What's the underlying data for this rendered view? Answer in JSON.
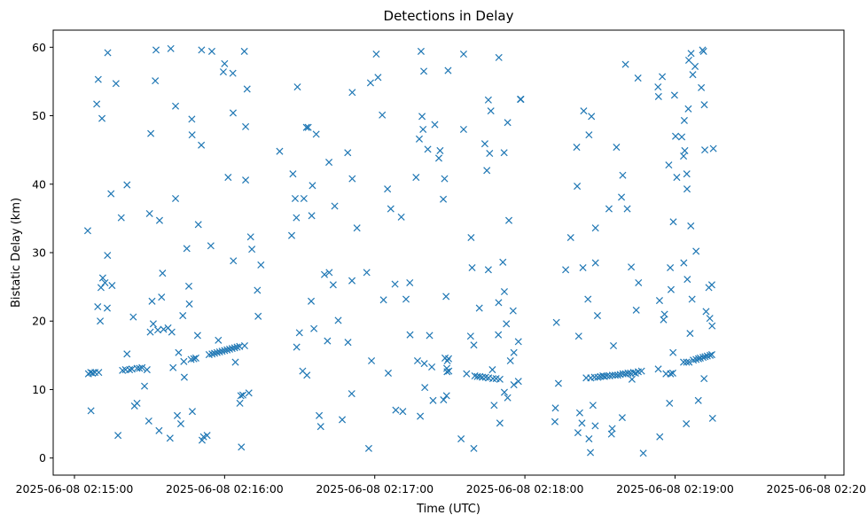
{
  "chart_data": {
    "type": "scatter",
    "title": "Detections in Delay",
    "xlabel": "Time (UTC)",
    "ylabel": "Bistatic Delay (km)",
    "x_unit": "seconds after 2025-06-08 02:15:00 UTC",
    "x_ticks": [
      {
        "value": 0,
        "label": "2025-06-08 02:15:00"
      },
      {
        "value": 60,
        "label": "2025-06-08 02:16:00"
      },
      {
        "value": 120,
        "label": "2025-06-08 02:17:00"
      },
      {
        "value": 180,
        "label": "2025-06-08 02:18:00"
      },
      {
        "value": 240,
        "label": "2025-06-08 02:19:00"
      },
      {
        "value": 300,
        "label": "2025-06-08 02:20:00"
      }
    ],
    "y_ticks": [
      0,
      10,
      20,
      30,
      40,
      50,
      60
    ],
    "xlim": [
      -8.5,
      307.5
    ],
    "ylim": [
      -2.5,
      62.5
    ],
    "grid": false,
    "marker": "x",
    "color": "#1f77b4",
    "points": [
      [
        5.3,
        33.2
      ],
      [
        5.6,
        12.3
      ],
      [
        6.5,
        12.5
      ],
      [
        6.6,
        6.9
      ],
      [
        7.2,
        12.4
      ],
      [
        8.2,
        12.5
      ],
      [
        8.9,
        51.7
      ],
      [
        9.3,
        22.1
      ],
      [
        9.5,
        55.3
      ],
      [
        9.7,
        12.5
      ],
      [
        10.3,
        20.0
      ],
      [
        10.6,
        24.9
      ],
      [
        11.0,
        49.6
      ],
      [
        11.3,
        26.3
      ],
      [
        12.2,
        25.6
      ],
      [
        13.3,
        59.2
      ],
      [
        13.2,
        29.6
      ],
      [
        13.1,
        21.9
      ],
      [
        14.6,
        38.6
      ],
      [
        15.0,
        25.2
      ],
      [
        16.6,
        54.7
      ],
      [
        17.4,
        3.3
      ],
      [
        18.7,
        35.1
      ],
      [
        19.2,
        12.8
      ],
      [
        20.4,
        12.9
      ],
      [
        21.0,
        15.2
      ],
      [
        21.0,
        39.9
      ],
      [
        22.0,
        12.9
      ],
      [
        23.0,
        13.0
      ],
      [
        23.5,
        20.6
      ],
      [
        24.0,
        7.6
      ],
      [
        25.0,
        13.1
      ],
      [
        25.0,
        8.0
      ],
      [
        26.0,
        13.1
      ],
      [
        27.0,
        13.2
      ],
      [
        28.0,
        10.5
      ],
      [
        29.0,
        12.9
      ],
      [
        29.7,
        5.4
      ],
      [
        30.0,
        35.7
      ],
      [
        30.3,
        18.4
      ],
      [
        30.5,
        47.4
      ],
      [
        31.0,
        22.9
      ],
      [
        31.5,
        19.6
      ],
      [
        32.6,
        59.6
      ],
      [
        32.3,
        55.1
      ],
      [
        33.3,
        18.7
      ],
      [
        33.8,
        4.0
      ],
      [
        34.0,
        34.7
      ],
      [
        34.8,
        23.5
      ],
      [
        35.2,
        27.0
      ],
      [
        35.6,
        18.8
      ],
      [
        37.4,
        19.0
      ],
      [
        38.2,
        2.9
      ],
      [
        38.5,
        59.8
      ],
      [
        38.9,
        18.4
      ],
      [
        39.4,
        13.2
      ],
      [
        40.4,
        51.4
      ],
      [
        40.4,
        37.9
      ],
      [
        41.1,
        6.2
      ],
      [
        41.6,
        15.4
      ],
      [
        42.5,
        5.0
      ],
      [
        43.3,
        20.8
      ],
      [
        43.7,
        14.1
      ],
      [
        43.9,
        11.8
      ],
      [
        44.9,
        30.6
      ],
      [
        45.7,
        25.1
      ],
      [
        45.9,
        22.5
      ],
      [
        46.6,
        14.4
      ],
      [
        46.9,
        49.5
      ],
      [
        47.0,
        47.2
      ],
      [
        47.1,
        6.8
      ],
      [
        47.7,
        14.5
      ],
      [
        48.5,
        14.6
      ],
      [
        49.2,
        17.9
      ],
      [
        49.5,
        34.1
      ],
      [
        50.7,
        45.7
      ],
      [
        50.8,
        59.6
      ],
      [
        51.0,
        2.6
      ],
      [
        51.6,
        3.1
      ],
      [
        53.0,
        3.3
      ],
      [
        53.8,
        15.1
      ],
      [
        54.5,
        31.0
      ],
      [
        54.9,
        59.4
      ],
      [
        55.0,
        15.2
      ],
      [
        56.0,
        15.3
      ],
      [
        57.0,
        15.4
      ],
      [
        57.5,
        17.2
      ],
      [
        58.0,
        15.5
      ],
      [
        59.0,
        15.6
      ],
      [
        59.5,
        56.4
      ],
      [
        60.0,
        15.7
      ],
      [
        60.0,
        57.6
      ],
      [
        61.0,
        15.8
      ],
      [
        61.4,
        41.0
      ],
      [
        62.0,
        15.9
      ],
      [
        63.0,
        16.0
      ],
      [
        63.3,
        56.2
      ],
      [
        63.4,
        50.4
      ],
      [
        63.5,
        28.8
      ],
      [
        64.0,
        16.1
      ],
      [
        64.3,
        14.0
      ],
      [
        65.0,
        16.2
      ],
      [
        66.0,
        16.3
      ],
      [
        66.1,
        8.0
      ],
      [
        66.5,
        9.1
      ],
      [
        66.7,
        1.6
      ],
      [
        67.3,
        9.2
      ],
      [
        68.0,
        16.4
      ],
      [
        67.9,
        59.4
      ],
      [
        68.4,
        48.4
      ],
      [
        68.4,
        40.6
      ],
      [
        69.0,
        53.9
      ],
      [
        69.7,
        9.5
      ],
      [
        70.4,
        32.3
      ],
      [
        70.9,
        30.5
      ],
      [
        73.1,
        24.5
      ],
      [
        73.4,
        20.7
      ],
      [
        74.5,
        28.2
      ],
      [
        82.0,
        44.8
      ],
      [
        86.8,
        32.5
      ],
      [
        87.3,
        41.5
      ],
      [
        88.2,
        37.9
      ],
      [
        88.7,
        35.1
      ],
      [
        88.8,
        16.2
      ],
      [
        89.1,
        54.2
      ],
      [
        89.9,
        18.3
      ],
      [
        91.2,
        12.7
      ],
      [
        91.7,
        37.9
      ],
      [
        92.9,
        12.1
      ],
      [
        92.7,
        48.3
      ],
      [
        93.4,
        48.3
      ],
      [
        94.6,
        22.9
      ],
      [
        94.8,
        35.4
      ],
      [
        95.1,
        39.8
      ],
      [
        95.7,
        18.9
      ],
      [
        96.6,
        47.3
      ],
      [
        97.8,
        6.2
      ],
      [
        98.4,
        4.6
      ],
      [
        99.9,
        26.8
      ],
      [
        101.1,
        17.1
      ],
      [
        101.7,
        43.2
      ],
      [
        101.8,
        27.1
      ],
      [
        103.4,
        25.3
      ],
      [
        104.0,
        36.8
      ],
      [
        105.4,
        20.1
      ],
      [
        107.0,
        5.6
      ],
      [
        109.2,
        44.6
      ],
      [
        109.3,
        16.9
      ],
      [
        111.0,
        40.8
      ],
      [
        110.9,
        25.9
      ],
      [
        110.8,
        9.4
      ],
      [
        111.0,
        53.4
      ],
      [
        112.9,
        33.6
      ],
      [
        116.8,
        27.1
      ],
      [
        117.6,
        1.4
      ],
      [
        118.3,
        54.8
      ],
      [
        118.7,
        14.2
      ],
      [
        120.6,
        59.0
      ],
      [
        121.3,
        55.6
      ],
      [
        123.0,
        50.1
      ],
      [
        123.5,
        23.1
      ],
      [
        125.1,
        39.3
      ],
      [
        125.4,
        12.4
      ],
      [
        126.4,
        36.4
      ],
      [
        128.1,
        25.4
      ],
      [
        128.4,
        7.0
      ],
      [
        130.6,
        35.2
      ],
      [
        131.2,
        6.8
      ],
      [
        132.5,
        23.2
      ],
      [
        134.0,
        25.6
      ],
      [
        134.1,
        18.0
      ],
      [
        136.5,
        41.0
      ],
      [
        137.1,
        14.2
      ],
      [
        137.8,
        46.6
      ],
      [
        138.2,
        6.1
      ],
      [
        138.5,
        59.4
      ],
      [
        138.9,
        49.9
      ],
      [
        139.3,
        48.0
      ],
      [
        139.6,
        56.5
      ],
      [
        139.8,
        13.8
      ],
      [
        140.0,
        10.3
      ],
      [
        141.2,
        45.1
      ],
      [
        141.9,
        17.9
      ],
      [
        142.8,
        13.3
      ],
      [
        143.3,
        8.4
      ],
      [
        144.0,
        48.7
      ],
      [
        145.6,
        43.8
      ],
      [
        146.1,
        44.9
      ],
      [
        147.4,
        37.8
      ],
      [
        147.5,
        8.5
      ],
      [
        147.9,
        40.8
      ],
      [
        148.1,
        14.6
      ],
      [
        148.5,
        23.6
      ],
      [
        148.7,
        9.1
      ],
      [
        148.8,
        13.1
      ],
      [
        148.9,
        12.6
      ],
      [
        149.0,
        14.2
      ],
      [
        149.3,
        56.6
      ],
      [
        149.5,
        14.5
      ],
      [
        149.6,
        12.7
      ],
      [
        154.5,
        2.8
      ],
      [
        155.5,
        59.0
      ],
      [
        155.5,
        48.0
      ],
      [
        156.7,
        12.3
      ],
      [
        158.3,
        17.8
      ],
      [
        158.5,
        32.2
      ],
      [
        158.9,
        27.8
      ],
      [
        159.6,
        16.5
      ],
      [
        159.6,
        1.4
      ],
      [
        160.0,
        12.0
      ],
      [
        161.0,
        11.9
      ],
      [
        161.8,
        21.9
      ],
      [
        162.0,
        11.9
      ],
      [
        163.0,
        11.8
      ],
      [
        164.0,
        45.9
      ],
      [
        164.3,
        11.8
      ],
      [
        164.8,
        42.0
      ],
      [
        165.4,
        27.5
      ],
      [
        165.5,
        11.7
      ],
      [
        165.4,
        52.3
      ],
      [
        165.9,
        44.5
      ],
      [
        166.4,
        50.7
      ],
      [
        167.0,
        12.9
      ],
      [
        167.2,
        11.6
      ],
      [
        167.7,
        7.7
      ],
      [
        168.5,
        11.6
      ],
      [
        169.6,
        58.5
      ],
      [
        169.5,
        22.7
      ],
      [
        169.4,
        18.0
      ],
      [
        170.0,
        11.5
      ],
      [
        170.0,
        5.1
      ],
      [
        171.2,
        28.6
      ],
      [
        171.8,
        24.3
      ],
      [
        171.7,
        44.6
      ],
      [
        171.8,
        9.6
      ],
      [
        172.6,
        19.6
      ],
      [
        173.1,
        8.8
      ],
      [
        173.1,
        49.0
      ],
      [
        173.6,
        34.7
      ],
      [
        174.2,
        14.2
      ],
      [
        175.3,
        21.5
      ],
      [
        175.6,
        10.7
      ],
      [
        175.6,
        15.4
      ],
      [
        177.4,
        11.2
      ],
      [
        177.4,
        17.0
      ],
      [
        178.2,
        52.4
      ],
      [
        178.4,
        52.4
      ],
      [
        192.0,
        5.3
      ],
      [
        192.2,
        7.3
      ],
      [
        192.6,
        19.8
      ],
      [
        193.4,
        10.9
      ],
      [
        196.3,
        27.5
      ],
      [
        198.3,
        32.2
      ],
      [
        200.7,
        45.4
      ],
      [
        200.9,
        39.7
      ],
      [
        201.2,
        3.7
      ],
      [
        201.5,
        17.8
      ],
      [
        201.9,
        6.6
      ],
      [
        202.8,
        5.1
      ],
      [
        203.2,
        27.8
      ],
      [
        203.5,
        50.7
      ],
      [
        204.5,
        11.7
      ],
      [
        205.2,
        23.2
      ],
      [
        205.6,
        47.2
      ],
      [
        205.6,
        2.8
      ],
      [
        206.2,
        0.8
      ],
      [
        206.3,
        11.7
      ],
      [
        206.6,
        49.9
      ],
      [
        207.2,
        7.7
      ],
      [
        207.8,
        11.8
      ],
      [
        208.1,
        4.7
      ],
      [
        209.1,
        11.8
      ],
      [
        208.2,
        33.6
      ],
      [
        208.2,
        28.5
      ],
      [
        209.0,
        20.8
      ],
      [
        210.2,
        11.9
      ],
      [
        211.2,
        12.0
      ],
      [
        211.8,
        11.9
      ],
      [
        212.8,
        12.0
      ],
      [
        213.6,
        36.4
      ],
      [
        213.9,
        12.0
      ],
      [
        214.6,
        3.5
      ],
      [
        214.9,
        4.3
      ],
      [
        215.0,
        12.1
      ],
      [
        215.4,
        16.4
      ],
      [
        216.1,
        12.1
      ],
      [
        216.6,
        45.4
      ],
      [
        217.1,
        12.1
      ],
      [
        218.1,
        12.2
      ],
      [
        218.6,
        38.1
      ],
      [
        218.9,
        5.9
      ],
      [
        219.2,
        12.3
      ],
      [
        219.1,
        41.3
      ],
      [
        220.2,
        12.3
      ],
      [
        220.2,
        57.5
      ],
      [
        220.9,
        36.4
      ],
      [
        221.2,
        12.4
      ],
      [
        222.2,
        12.4
      ],
      [
        222.5,
        27.9
      ],
      [
        222.8,
        11.5
      ],
      [
        223.4,
        12.5
      ],
      [
        224.2,
        12.4
      ],
      [
        224.5,
        21.6
      ],
      [
        225.2,
        55.5
      ],
      [
        225.3,
        12.6
      ],
      [
        225.4,
        25.6
      ],
      [
        226.6,
        12.7
      ],
      [
        227.3,
        0.7
      ],
      [
        233.2,
        54.2
      ],
      [
        233.3,
        13.0
      ],
      [
        233.4,
        52.8
      ],
      [
        233.8,
        23.0
      ],
      [
        233.9,
        3.1
      ],
      [
        234.9,
        55.7
      ],
      [
        235.4,
        20.2
      ],
      [
        235.8,
        21.0
      ],
      [
        236.4,
        12.3
      ],
      [
        237.5,
        42.8
      ],
      [
        237.8,
        8.0
      ],
      [
        238.1,
        27.8
      ],
      [
        238.4,
        24.6
      ],
      [
        238.2,
        12.3
      ],
      [
        239.1,
        12.4
      ],
      [
        239.3,
        34.5
      ],
      [
        239.2,
        15.4
      ],
      [
        239.8,
        53.0
      ],
      [
        240.2,
        47.0
      ],
      [
        240.7,
        41.0
      ],
      [
        242.7,
        46.9
      ],
      [
        243.5,
        28.5
      ],
      [
        243.4,
        14.0
      ],
      [
        243.4,
        44.1
      ],
      [
        243.7,
        49.3
      ],
      [
        243.9,
        44.9
      ],
      [
        244.5,
        5.0
      ],
      [
        244.6,
        14.0
      ],
      [
        244.7,
        41.5
      ],
      [
        244.8,
        39.3
      ],
      [
        244.9,
        26.1
      ],
      [
        245.3,
        51.0
      ],
      [
        245.5,
        58.1
      ],
      [
        245.6,
        14.0
      ],
      [
        246.0,
        18.2
      ],
      [
        246.4,
        59.1
      ],
      [
        246.3,
        33.9
      ],
      [
        246.8,
        23.2
      ],
      [
        247.1,
        56.0
      ],
      [
        247.3,
        14.3
      ],
      [
        248.0,
        57.2
      ],
      [
        248.4,
        14.4
      ],
      [
        248.4,
        30.2
      ],
      [
        249.3,
        8.4
      ],
      [
        249.4,
        14.5
      ],
      [
        250.1,
        14.6
      ],
      [
        250.5,
        54.1
      ],
      [
        251.0,
        59.6
      ],
      [
        251.2,
        14.7
      ],
      [
        251.4,
        59.4
      ],
      [
        251.6,
        11.6
      ],
      [
        251.9,
        45.0
      ],
      [
        251.7,
        51.6
      ],
      [
        252.0,
        14.8
      ],
      [
        252.4,
        21.4
      ],
      [
        252.9,
        14.9
      ],
      [
        253.5,
        24.9
      ],
      [
        253.9,
        20.4
      ],
      [
        254.0,
        15.0
      ],
      [
        254.7,
        25.3
      ],
      [
        254.7,
        15.1
      ],
      [
        254.8,
        19.3
      ],
      [
        255.0,
        5.8
      ],
      [
        255.3,
        45.2
      ]
    ]
  }
}
